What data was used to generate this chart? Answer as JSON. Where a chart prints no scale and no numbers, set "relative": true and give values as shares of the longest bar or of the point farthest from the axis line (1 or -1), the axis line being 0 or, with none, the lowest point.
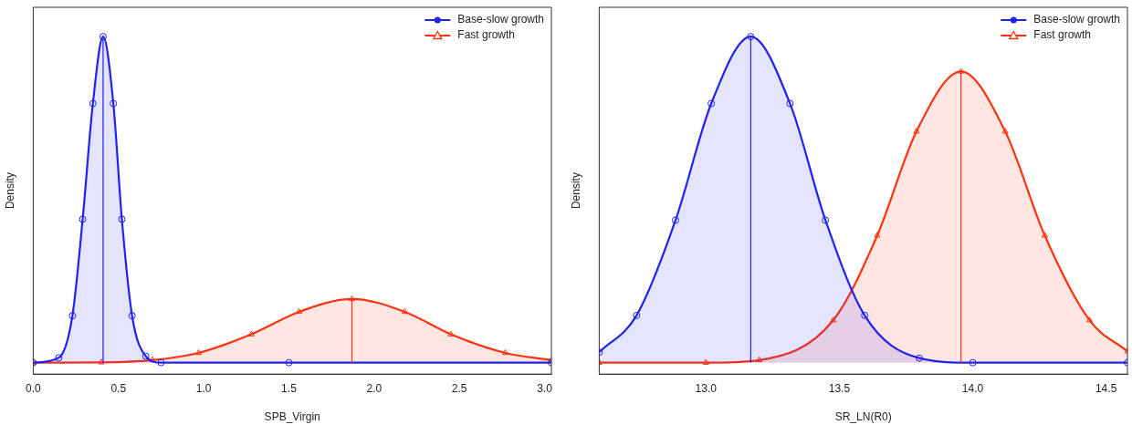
{
  "chart_data": [
    {
      "type": "area",
      "relative": true,
      "xlabel": "SPB_Virgin",
      "ylabel": "Density",
      "legend": "top right",
      "xlim": [
        0,
        3.04
      ],
      "xticks": [
        {
          "value": 0,
          "label": "0.0"
        },
        0.5,
        {
          "value": 1,
          "label": "1.0"
        },
        1.5,
        {
          "value": 2,
          "label": "2.0"
        },
        2.5,
        {
          "value": 3,
          "label": "3.0"
        }
      ],
      "series": [
        {
          "name": "Base-slow growth",
          "color": "#2222ee",
          "marker": "circle",
          "x": [
            0,
            0.15,
            0.23,
            0.29,
            0.35,
            0.41,
            0.47,
            0.52,
            0.58,
            0.66,
            0.75,
            1.5,
            3.04
          ],
          "values": [
            0,
            0.015,
            0.144,
            0.44,
            0.795,
            1,
            0.795,
            0.44,
            0.144,
            0.02,
            0,
            0,
            0
          ]
        },
        {
          "name": "Fast growth",
          "color": "#ff3311",
          "marker": "triangle",
          "x": [
            0,
            0.4,
            0.7,
            0.97,
            1.28,
            1.56,
            1.87,
            2.18,
            2.45,
            2.77,
            3.04
          ],
          "values": [
            0,
            0.001,
            0.008,
            0.03,
            0.087,
            0.156,
            0.195,
            0.156,
            0.087,
            0.03,
            0.008
          ]
        }
      ],
      "ref_lines": [
        {
          "axis": "x",
          "value": 0.41,
          "color": "#2222ee"
        },
        {
          "axis": "x",
          "value": 1.87,
          "color": "#ff3311"
        }
      ]
    },
    {
      "type": "area",
      "relative": true,
      "xlabel": "SR_LN(R0)",
      "ylabel": "Density",
      "legend": "top right",
      "xlim": [
        12.6,
        14.58
      ],
      "xticks": [
        {
          "value": 13,
          "label": "13.0"
        },
        13.5,
        {
          "value": 14,
          "label": "14.0"
        },
        14.5
      ],
      "series": [
        {
          "name": "Base-slow growth",
          "color": "#2222ee",
          "marker": "circle",
          "x": [
            12.6,
            12.74,
            12.886,
            13.02,
            13.168,
            13.315,
            13.448,
            13.595,
            13.8,
            14.0,
            14.58
          ],
          "values": [
            0.032,
            0.145,
            0.437,
            0.795,
            1,
            0.795,
            0.437,
            0.145,
            0.014,
            0,
            0
          ]
        },
        {
          "name": "Fast growth",
          "color": "#ff3311",
          "marker": "triangle",
          "x": [
            12.6,
            13.0,
            13.2,
            13.477,
            13.642,
            13.789,
            13.956,
            14.122,
            14.27,
            14.438,
            14.58
          ],
          "values": [
            0,
            0,
            0.008,
            0.13,
            0.39,
            0.709,
            0.893,
            0.709,
            0.39,
            0.13,
            0.035
          ]
        }
      ],
      "ref_lines": [
        {
          "axis": "x",
          "value": 13.168,
          "color": "#2222ee"
        },
        {
          "axis": "x",
          "value": 13.956,
          "color": "#ff3311"
        }
      ]
    }
  ]
}
